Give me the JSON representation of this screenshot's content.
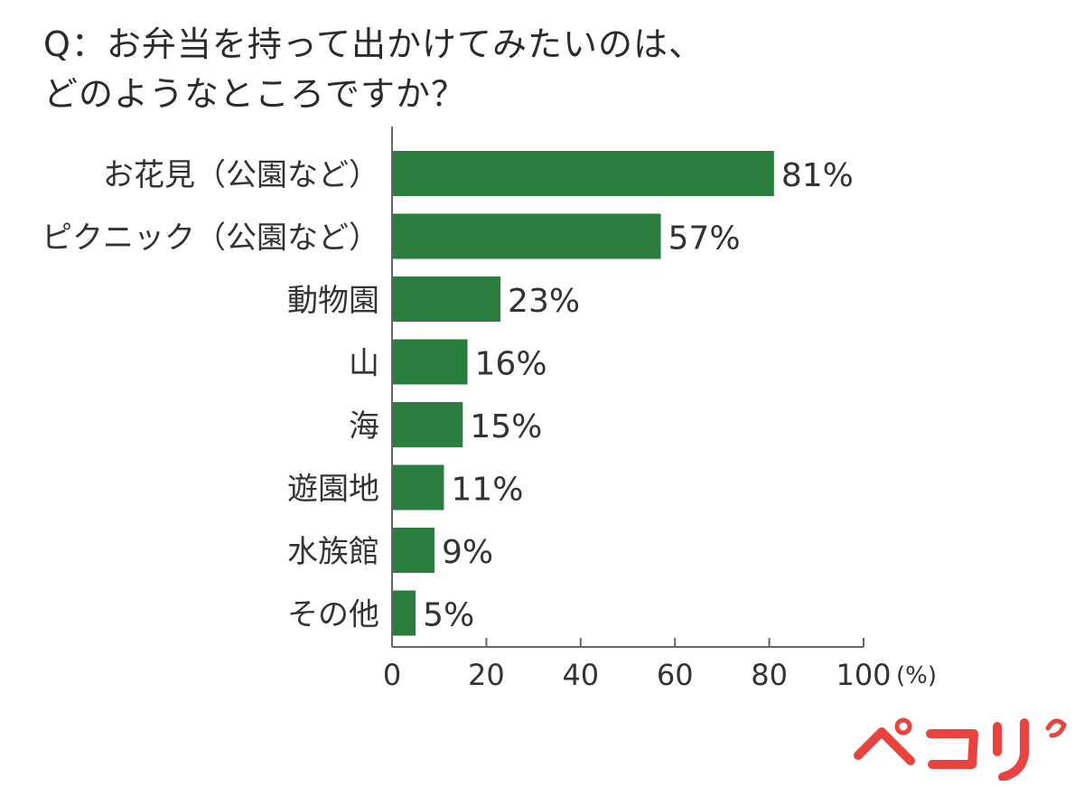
{
  "title": {
    "line1": "Q：お弁当を持って出かけてみたいのは、",
    "line2": "どのようなところですか？"
  },
  "colors": {
    "bar": "#2a7d3e",
    "axis": "#666666",
    "text": "#333333",
    "logo": "#e8433e"
  },
  "logo": {
    "text": "ぺコリ",
    "icon": "pecori-logo"
  },
  "chart_data": {
    "type": "bar",
    "orientation": "horizontal",
    "categories": [
      "お花見（公園など）",
      "ピクニック（公園など）",
      "動物園",
      "山",
      "海",
      "遊園地",
      "水族館",
      "その他"
    ],
    "values": [
      81,
      57,
      23,
      16,
      15,
      11,
      9,
      5
    ],
    "value_labels": [
      "81%",
      "57%",
      "23%",
      "16%",
      "15%",
      "11%",
      "9%",
      "5%"
    ],
    "title": "Q：お弁当を持って出かけてみたいのは、どのようなところですか？",
    "xlabel": "(%)",
    "ylabel": "",
    "xlim": [
      0,
      100
    ],
    "xticks": [
      "0",
      "20",
      "40",
      "60",
      "80",
      "100"
    ],
    "grid": false,
    "legend": "none"
  }
}
